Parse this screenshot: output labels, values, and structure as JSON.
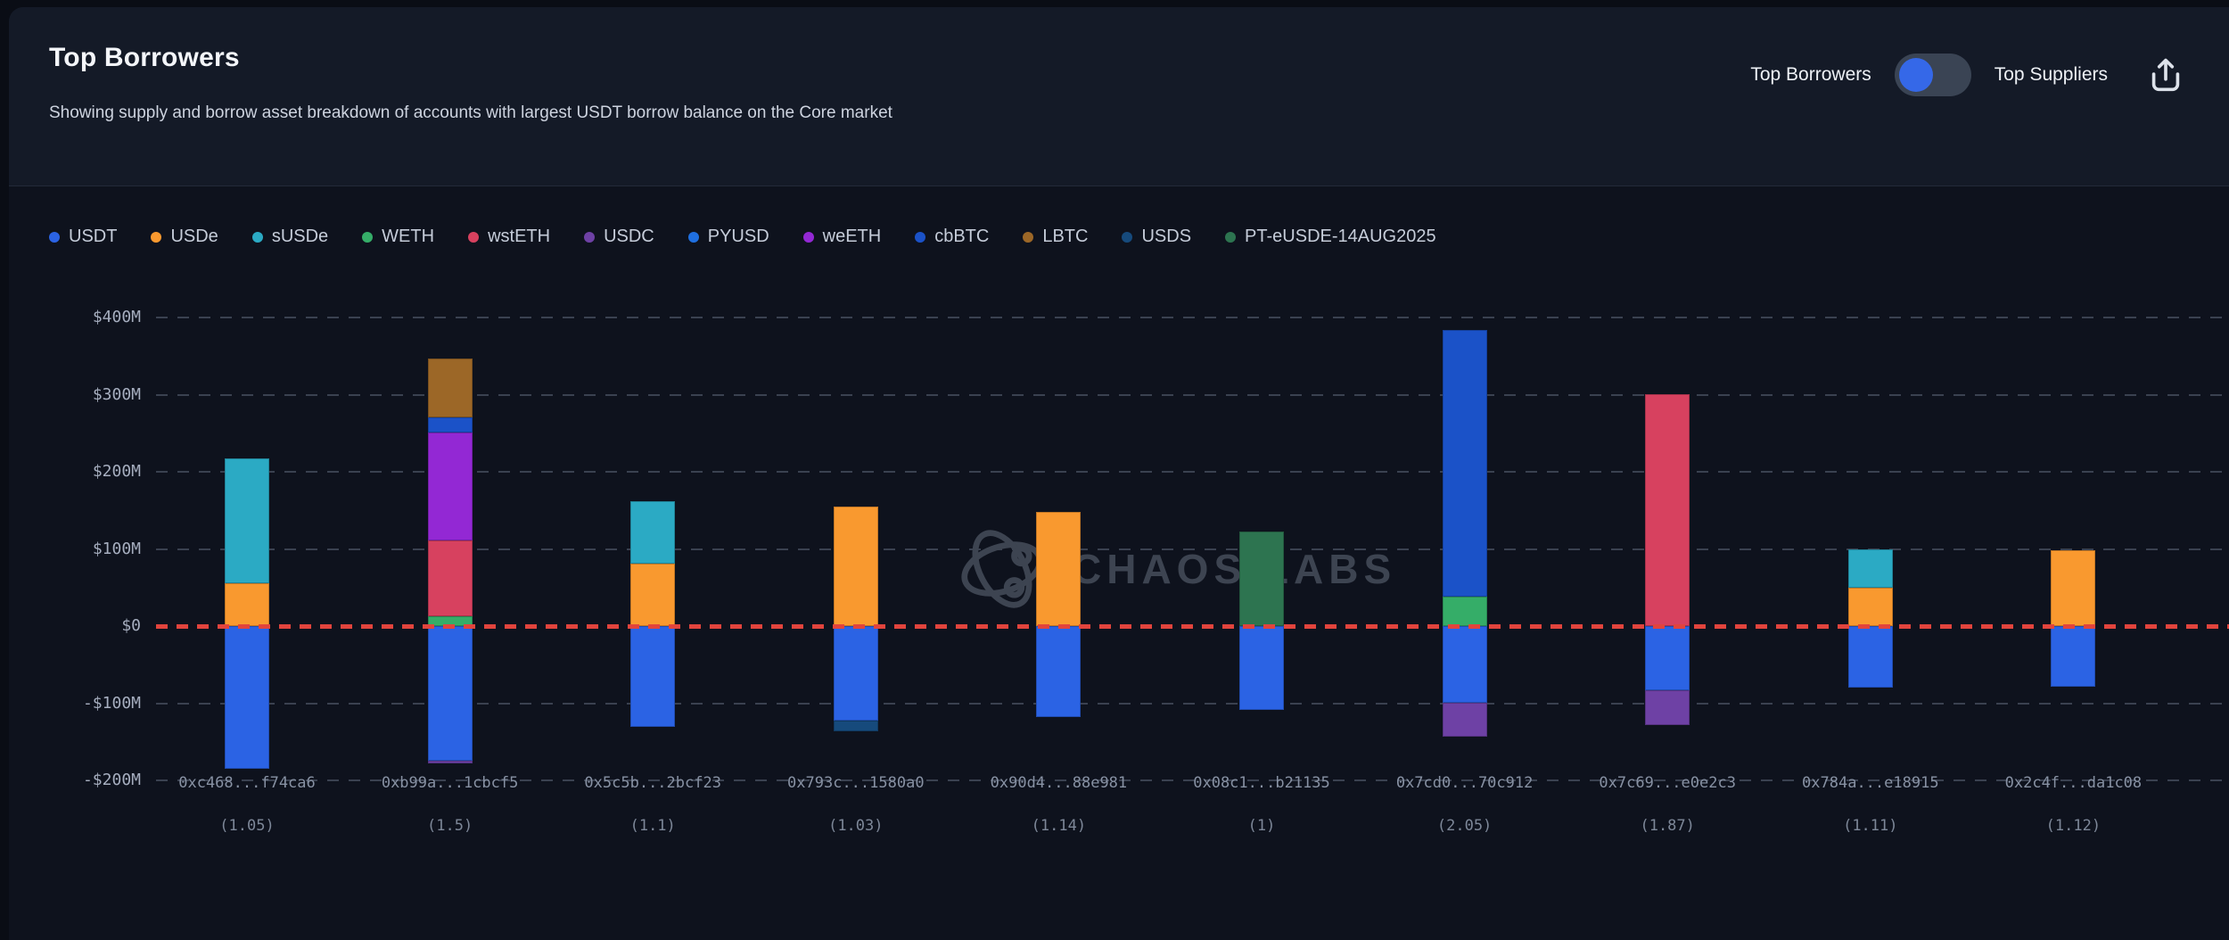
{
  "header": {
    "title": "Top Borrowers",
    "subtitle": "Showing supply and borrow asset breakdown of accounts with largest USDT borrow balance on the Core market",
    "toggle": {
      "left_label": "Top Borrowers",
      "right_label": "Top Suppliers",
      "selected": "Top Borrowers",
      "knob_color": "#3568e8",
      "track_color": "#3a4454"
    }
  },
  "watermark": {
    "text": "CHAOS LABS"
  },
  "chart_data": {
    "type": "bar",
    "stacked": true,
    "orientation": "vertical",
    "title": "Top Borrowers",
    "unit": "$M (USD millions)",
    "ylim": [
      -200,
      400
    ],
    "grid": "horizontal-dashed",
    "legend_position": "top-left",
    "zero_line": {
      "value": 0,
      "color": "#e2443d",
      "style": "dashed"
    },
    "yticks": [
      {
        "label": "$400M",
        "value": 400
      },
      {
        "label": "$300M",
        "value": 300
      },
      {
        "label": "$200M",
        "value": 200
      },
      {
        "label": "$100M",
        "value": 100
      },
      {
        "label": "$0",
        "value": 0
      },
      {
        "label": "-$100M",
        "value": -100
      },
      {
        "label": "-$200M",
        "value": -200
      }
    ],
    "legend": [
      {
        "name": "USDT",
        "color": "#2b63e4"
      },
      {
        "name": "USDe",
        "color": "#f9992f"
      },
      {
        "name": "sUSDe",
        "color": "#2baac4"
      },
      {
        "name": "WETH",
        "color": "#35ad68"
      },
      {
        "name": "wstETH",
        "color": "#d7415f"
      },
      {
        "name": "USDC",
        "color": "#6e41a5"
      },
      {
        "name": "PYUSD",
        "color": "#1f6fe0"
      },
      {
        "name": "weETH",
        "color": "#9328d4"
      },
      {
        "name": "cbBTC",
        "color": "#1b52c8"
      },
      {
        "name": "LBTC",
        "color": "#9c6727"
      },
      {
        "name": "USDS",
        "color": "#164a7c"
      },
      {
        "name": "PT-eUSDE-14AUG2025",
        "color": "#2d7450"
      }
    ],
    "bars": [
      {
        "address": "0xc468...f74ca6",
        "health": "(1.05)",
        "supply": [
          {
            "asset": "USDe",
            "value": 55
          },
          {
            "asset": "sUSDe",
            "value": 162
          }
        ],
        "borrow": [
          {
            "asset": "USDT",
            "value": -185
          }
        ]
      },
      {
        "address": "0xb99a...1cbcf5",
        "health": "(1.5)",
        "supply": [
          {
            "asset": "WETH",
            "value": 13
          },
          {
            "asset": "wstETH",
            "value": 98
          },
          {
            "asset": "weETH",
            "value": 140
          },
          {
            "asset": "cbBTC",
            "value": 19
          },
          {
            "asset": "LBTC",
            "value": 77
          }
        ],
        "borrow": [
          {
            "asset": "USDT",
            "value": -174
          },
          {
            "asset": "USDC",
            "value": -4
          }
        ]
      },
      {
        "address": "0x5c5b...2bcf23",
        "health": "(1.1)",
        "supply": [
          {
            "asset": "USDe",
            "value": 81
          },
          {
            "asset": "sUSDe",
            "value": 81
          }
        ],
        "borrow": [
          {
            "asset": "USDT",
            "value": -131
          }
        ]
      },
      {
        "address": "0x793c...1580a0",
        "health": "(1.03)",
        "supply": [
          {
            "asset": "USDe",
            "value": 155
          }
        ],
        "borrow": [
          {
            "asset": "USDT",
            "value": -122
          },
          {
            "asset": "USDS",
            "value": -15
          }
        ]
      },
      {
        "address": "0x90d4...88e981",
        "health": "(1.14)",
        "supply": [
          {
            "asset": "USDe",
            "value": 148
          }
        ],
        "borrow": [
          {
            "asset": "USDT",
            "value": -118
          }
        ]
      },
      {
        "address": "0x08c1...b21135",
        "health": "(1)",
        "supply": [
          {
            "asset": "PT-eUSDE-14AUG2025",
            "value": 122
          }
        ],
        "borrow": [
          {
            "asset": "USDT",
            "value": -109
          }
        ]
      },
      {
        "address": "0x7cd0...70c912",
        "health": "(2.05)",
        "supply": [
          {
            "asset": "WETH",
            "value": 38
          },
          {
            "asset": "cbBTC",
            "value": 346
          }
        ],
        "borrow": [
          {
            "asset": "USDT",
            "value": -99
          },
          {
            "asset": "USDC",
            "value": -44
          }
        ]
      },
      {
        "address": "0x7c69...e0e2c3",
        "health": "(1.87)",
        "supply": [
          {
            "asset": "wstETH",
            "value": 301
          }
        ],
        "borrow": [
          {
            "asset": "USDT",
            "value": -83
          },
          {
            "asset": "USDC",
            "value": -45
          }
        ]
      },
      {
        "address": "0x784a...e18915",
        "health": "(1.11)",
        "supply": [
          {
            "asset": "USDe",
            "value": 50
          },
          {
            "asset": "sUSDe",
            "value": 50
          }
        ],
        "borrow": [
          {
            "asset": "USDT",
            "value": -80
          }
        ]
      },
      {
        "address": "0x2c4f...da1c08",
        "health": "(1.12)",
        "supply": [
          {
            "asset": "USDe",
            "value": 98
          }
        ],
        "borrow": [
          {
            "asset": "USDT",
            "value": -79
          }
        ]
      }
    ]
  }
}
